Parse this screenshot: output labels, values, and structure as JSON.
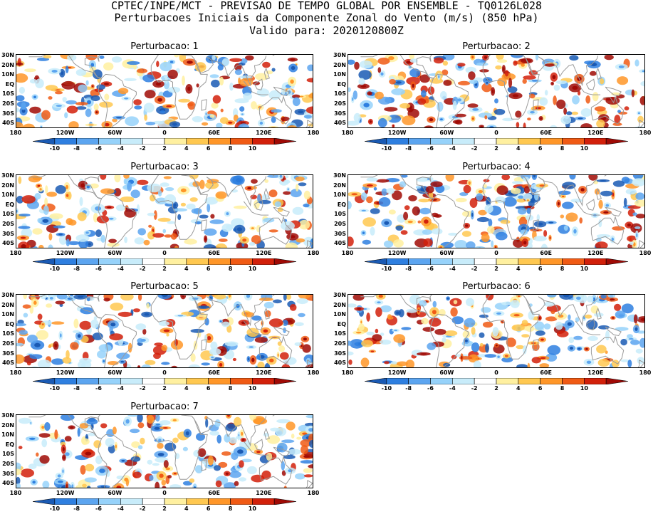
{
  "header": {
    "line1": "CPTEC/INPE/MCT - PREVISAO DE TEMPO GLOBAL POR ENSEMBLE - TQ0126L028",
    "line2": "Perturbacoes Iniciais da Componente Zonal do Vento (m/s) (850 hPa)",
    "line3": "Valido para: 2020120800Z"
  },
  "panels": [
    {
      "title": "Perturbacao: 1"
    },
    {
      "title": "Perturbacao: 2"
    },
    {
      "title": "Perturbacao: 3"
    },
    {
      "title": "Perturbacao: 4"
    },
    {
      "title": "Perturbacao: 5"
    },
    {
      "title": "Perturbacao: 6"
    },
    {
      "title": "Perturbacao: 7"
    }
  ],
  "lat_labels": [
    "30N",
    "20N",
    "10N",
    "EQ",
    "10S",
    "20S",
    "30S",
    "40S"
  ],
  "lon_labels": [
    "180",
    "120W",
    "60W",
    "0",
    "60E",
    "120E",
    "180"
  ],
  "colorbar": {
    "labels": [
      "-10",
      "-8",
      "-6",
      "-4",
      "-2",
      "2",
      "4",
      "6",
      "8",
      "10"
    ],
    "colors": [
      "#1a5ab4",
      "#2e7fe0",
      "#5ca5f0",
      "#96d2fa",
      "#c8ecfa",
      "#ffffff",
      "#fff0a0",
      "#ffc850",
      "#ff9628",
      "#f05a14",
      "#d2200a",
      "#a00a05"
    ]
  }
}
